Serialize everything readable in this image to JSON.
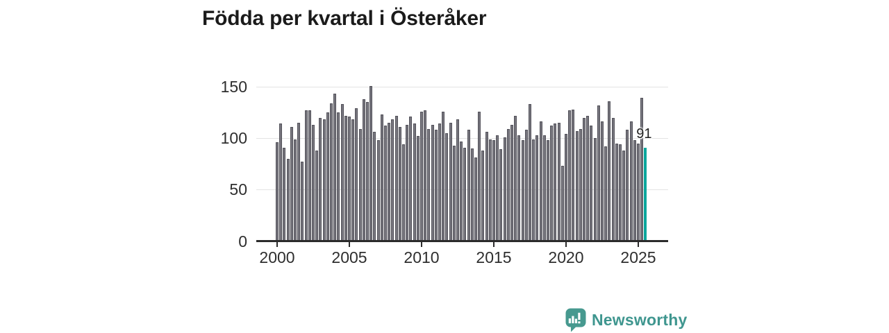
{
  "title": "Födda per kvartal i Österåker",
  "annotation": {
    "last_value_label": "91"
  },
  "logo": {
    "text": "Newsworthy",
    "icon": "newsworthy-speech-bubble-bar-chart-icon"
  },
  "colors": {
    "bar": "#77767e",
    "bar_border": "#53525a",
    "highlight_teal": "#0ba69c",
    "gridline": "#e3e3e3",
    "axis": "#2b2b2b",
    "title_text": "#1b1b1b",
    "tick_text": "#2e2e2e",
    "logo_teal": "#3f968f"
  },
  "chart_data": {
    "type": "bar",
    "title": "Födda per kvartal i Österåker",
    "xlabel": "",
    "ylabel": "",
    "x_period_start": "2000-Q1",
    "x_period_end": "2025-Q3",
    "periodicity": "quarterly",
    "ylim": [
      0,
      155
    ],
    "grid": "horizontal",
    "y_ticks": [
      0,
      50,
      100,
      150
    ],
    "x_ticks": [
      {
        "label": "2000",
        "quarter_index": 0
      },
      {
        "label": "2005",
        "quarter_index": 20
      },
      {
        "label": "2010",
        "quarter_index": 40
      },
      {
        "label": "2015",
        "quarter_index": 60
      },
      {
        "label": "2020",
        "quarter_index": 80
      },
      {
        "label": "2025",
        "quarter_index": 100
      }
    ],
    "values": [
      96,
      114,
      91,
      80,
      111,
      99,
      115,
      77,
      127,
      127,
      113,
      88,
      120,
      118,
      125,
      134,
      143,
      125,
      133,
      122,
      121,
      118,
      129,
      109,
      138,
      135,
      151,
      106,
      98,
      123,
      112,
      115,
      118,
      122,
      111,
      94,
      113,
      121,
      114,
      102,
      126,
      127,
      109,
      113,
      108,
      114,
      126,
      105,
      115,
      93,
      118,
      97,
      91,
      108,
      90,
      81,
      126,
      88,
      106,
      99,
      98,
      103,
      89,
      101,
      109,
      113,
      122,
      103,
      98,
      108,
      133,
      99,
      103,
      116,
      103,
      98,
      112,
      114,
      115,
      73,
      104,
      127,
      128,
      107,
      109,
      120,
      122,
      112,
      100,
      132,
      116,
      92,
      136,
      120,
      95,
      94,
      88,
      108,
      116,
      98,
      95,
      139,
      91
    ],
    "highlight_last": true,
    "last_value": 91
  }
}
